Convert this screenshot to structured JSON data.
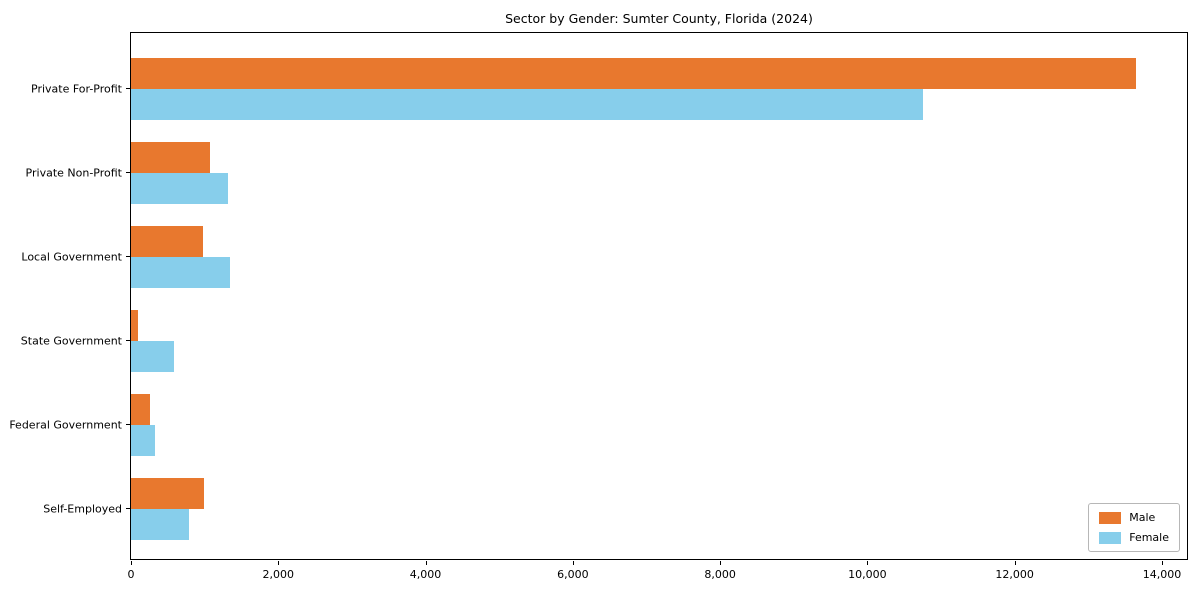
{
  "chart_data": {
    "type": "bar",
    "orientation": "horizontal",
    "title": "Sector by Gender: Sumter County, Florida (2024)",
    "categories": [
      "Private For-Profit",
      "Private Non-Profit",
      "Local Government",
      "State Government",
      "Federal Government",
      "Self-Employed"
    ],
    "series": [
      {
        "name": "Male",
        "color": "#e8782e",
        "values": [
          13650,
          1070,
          980,
          100,
          260,
          990
        ]
      },
      {
        "name": "Female",
        "color": "#87ceeb",
        "values": [
          10750,
          1320,
          1340,
          580,
          330,
          790
        ]
      }
    ],
    "xlabel": "",
    "ylabel": "",
    "xlim": [
      0,
      14340
    ],
    "xticks": [
      0,
      2000,
      4000,
      6000,
      8000,
      10000,
      12000,
      14000
    ],
    "xtick_labels": [
      "0",
      "2,000",
      "4,000",
      "6,000",
      "8,000",
      "10,000",
      "12,000",
      "14,000"
    ],
    "legend_position": "lower right",
    "grid": false,
    "background": "#ffffff"
  }
}
